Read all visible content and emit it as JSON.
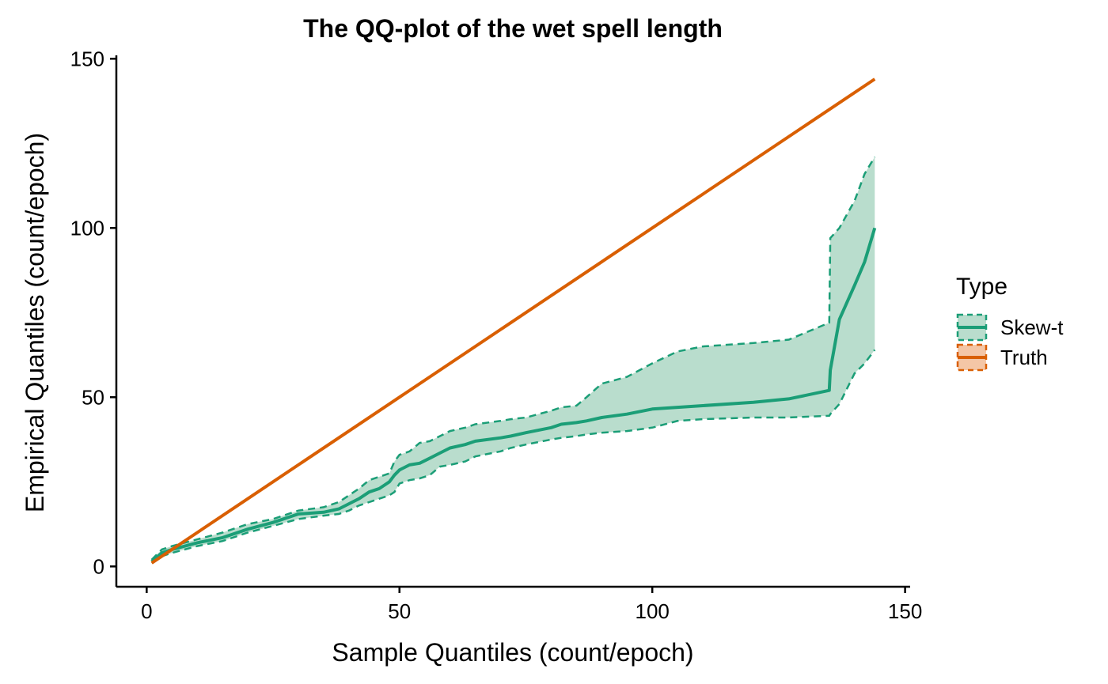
{
  "chart_data": {
    "type": "line",
    "title": "The QQ-plot of the wet spell length",
    "xlabel": "Sample Quantiles (count/epoch)",
    "ylabel": "Empirical Quantiles (count/epoch)",
    "xlim": [
      -6,
      151
    ],
    "ylim": [
      -6,
      151
    ],
    "xticks": [
      0,
      50,
      100,
      150
    ],
    "yticks": [
      0,
      50,
      100,
      150
    ],
    "xtick_labels": [
      "0",
      "50",
      "100",
      "150"
    ],
    "ytick_labels": [
      "0",
      "50",
      "100",
      "150"
    ],
    "grid": false,
    "legend": {
      "title": "Type",
      "position": "right",
      "entries": [
        "Skew-t",
        "Truth"
      ]
    },
    "series": [
      {
        "name": "Skew-t",
        "color": "#1b9e77",
        "band_fill": "#b9ddcd",
        "x": [
          1,
          3,
          5,
          10,
          15,
          20,
          25,
          30,
          35,
          38,
          40,
          42,
          44,
          46,
          47,
          48,
          49,
          50,
          52,
          54,
          56,
          58,
          60,
          63,
          65,
          70,
          72,
          75,
          80,
          82,
          85,
          87,
          90,
          95,
          100,
          105,
          110,
          120,
          127,
          135,
          135.2,
          137,
          140,
          142,
          144
        ],
        "y": [
          1.5,
          4,
          5,
          7,
          8.5,
          11,
          13,
          15.5,
          16,
          17,
          18.5,
          20,
          22,
          23,
          24,
          25,
          27,
          28.5,
          30,
          30.5,
          32,
          33.5,
          35,
          36,
          37,
          38,
          38.5,
          39.5,
          41,
          42,
          42.5,
          43,
          44,
          45,
          46.5,
          47,
          47.5,
          48.5,
          49.5,
          52,
          58,
          73,
          83,
          90,
          100
        ],
        "lower": [
          1,
          3,
          4,
          6,
          7.5,
          10,
          12,
          14,
          15,
          15.5,
          16.5,
          18,
          19,
          20,
          20.5,
          21,
          22,
          24.5,
          25.5,
          26,
          27,
          29.5,
          30,
          31,
          32.5,
          34,
          35,
          36,
          37.5,
          38,
          38.5,
          39,
          39.5,
          40,
          41,
          43,
          43.5,
          44,
          44,
          44.5,
          45,
          48,
          57,
          60,
          64
        ],
        "upper": [
          2,
          5,
          6,
          8,
          10,
          12.5,
          14,
          16.5,
          17.5,
          19,
          21,
          23,
          25.5,
          26.5,
          27,
          27.5,
          31,
          33,
          34,
          36.5,
          37,
          38.5,
          40,
          41,
          42,
          43,
          43.5,
          44,
          46,
          47,
          47.5,
          50,
          54,
          56,
          60,
          63.5,
          65,
          66,
          67,
          72,
          97,
          100,
          108,
          116,
          121
        ]
      },
      {
        "name": "Truth",
        "color": "#d95f02",
        "band_fill": "#f4c6a6",
        "x": [
          1,
          144
        ],
        "y": [
          1,
          144
        ]
      }
    ]
  }
}
